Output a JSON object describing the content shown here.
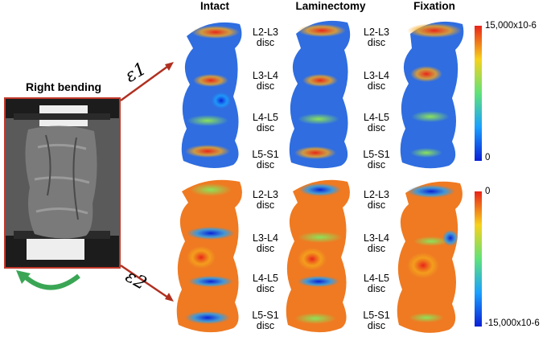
{
  "specimen": {
    "title": "Right bending"
  },
  "columns": [
    "Intact",
    "Laminectomy",
    "Fixation"
  ],
  "discs": [
    {
      "line1": "L2-L3",
      "line2": "disc"
    },
    {
      "line1": "L3-L4",
      "line2": "disc"
    },
    {
      "line1": "L4-L5",
      "line2": "disc"
    },
    {
      "line1": "L5-S1",
      "line2": "disc"
    }
  ],
  "strains": {
    "e1": "ε1",
    "e2": "ε2"
  },
  "colorbars": {
    "top": {
      "max": "15,000x10-6",
      "min": "0"
    },
    "bottom": {
      "max": "0",
      "min": "-15,000x10-6"
    }
  },
  "colors": {
    "arrow": "#b03020",
    "rotation_arrow": "#3aa655",
    "frame": "#c0392b"
  }
}
